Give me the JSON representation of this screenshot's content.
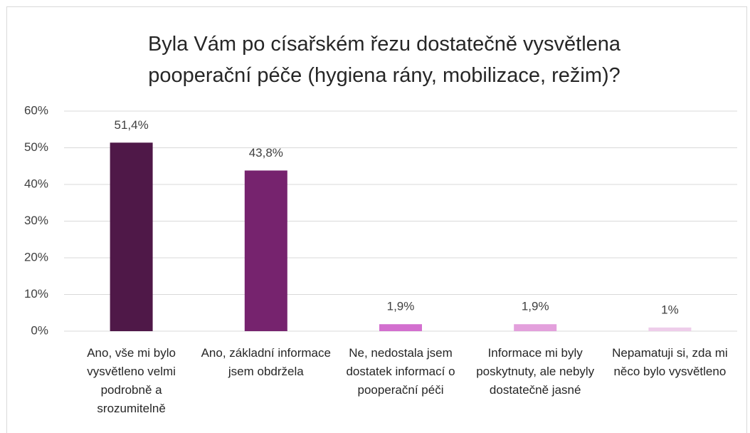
{
  "chart_data": {
    "type": "bar",
    "title": "Byla Vám po císařském řezu dostatečně vysvětlena pooperační péče (hygiena rány, mobilizace, režim)?",
    "categories": [
      "Ano, vše mi bylo vysvětleno velmi podrobně a srozumitelně",
      "Ano, základní informace jsem obdržela",
      "Ne, nedostala jsem dostatek informací o pooperační péči",
      "Informace mi byly poskytnuty, ale nebyly dostatečně jasné",
      "Nepamatuji si, zda mi něco bylo vysvětleno"
    ],
    "values": [
      51.4,
      43.8,
      1.9,
      1.9,
      1
    ],
    "value_labels": [
      "51,4%",
      "43,8%",
      "1,9%",
      "1,9%",
      "1%"
    ],
    "colors": [
      "#4f1848",
      "#76236e",
      "#d36fcf",
      "#e3a0dc",
      "#eecdea"
    ],
    "ylim": [
      0,
      60
    ],
    "yticks": [
      {
        "value": 0,
        "label": "0%"
      },
      {
        "value": 10,
        "label": "10%"
      },
      {
        "value": 20,
        "label": "20%"
      },
      {
        "value": 30,
        "label": "30%"
      },
      {
        "value": 40,
        "label": "40%"
      },
      {
        "value": 50,
        "label": "50%"
      },
      {
        "value": 60,
        "label": "60%"
      }
    ],
    "grid": true
  }
}
